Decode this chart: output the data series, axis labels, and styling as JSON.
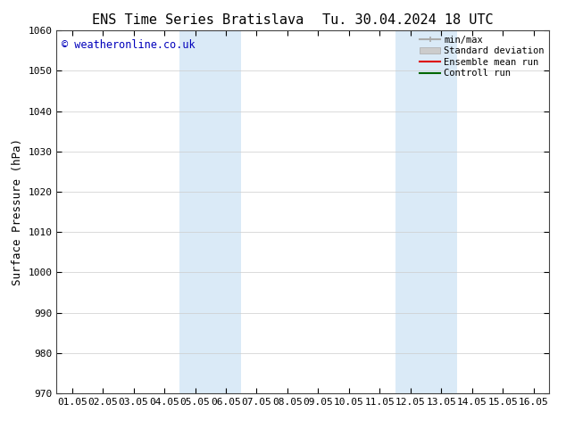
{
  "title_left": "ENS Time Series Bratislava",
  "title_right": "Tu. 30.04.2024 18 UTC",
  "ylabel": "Surface Pressure (hPa)",
  "ylim": [
    970,
    1060
  ],
  "yticks": [
    970,
    980,
    990,
    1000,
    1010,
    1020,
    1030,
    1040,
    1050,
    1060
  ],
  "xtick_labels": [
    "01.05",
    "02.05",
    "03.05",
    "04.05",
    "05.05",
    "06.05",
    "07.05",
    "08.05",
    "09.05",
    "10.05",
    "11.05",
    "12.05",
    "13.05",
    "14.05",
    "15.05",
    "16.05"
  ],
  "xlim": [
    -0.5,
    15.5
  ],
  "shaded_bands": [
    {
      "x_start": 3.5,
      "x_end": 5.5,
      "color": "#daeaf7"
    },
    {
      "x_start": 10.5,
      "x_end": 12.5,
      "color": "#daeaf7"
    }
  ],
  "watermark": "© weatheronline.co.uk",
  "watermark_color": "#0000bb",
  "bg_color": "#ffffff",
  "spine_color": "#444444",
  "grid_color": "#cccccc",
  "title_fontsize": 11,
  "tick_fontsize": 8,
  "ylabel_fontsize": 9
}
